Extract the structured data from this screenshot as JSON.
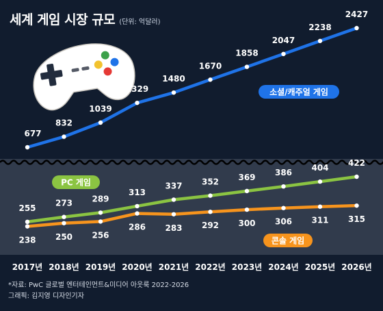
{
  "header": {
    "title": "세계 게임 시장 규모",
    "unit": "(단위: 억달러)"
  },
  "source": {
    "line1": "*자료: PwC 글로벌 엔터테인먼트&미디어 아웃룩 2022-2026",
    "line2": "그래픽: 김지영 디자인기자"
  },
  "colors": {
    "background": "#111c2e",
    "lower_panel": "#313b4c",
    "mobile": "#1f73e8",
    "pc": "#8bc442",
    "console": "#f7941d"
  },
  "chart_data": {
    "type": "line",
    "categories": [
      "2017년",
      "2018년",
      "2019년",
      "2020년",
      "2021년",
      "2022년",
      "2023년",
      "2024년",
      "2025년",
      "2026년"
    ],
    "series": [
      {
        "name": "소셜/캐주얼 게임",
        "color": "#1f73e8",
        "values": [
          677,
          832,
          1039,
          1329,
          1480,
          1670,
          1858,
          2047,
          2238,
          2427
        ]
      },
      {
        "name": "PC 게임",
        "color": "#8bc442",
        "values": [
          255,
          273,
          289,
          313,
          337,
          352,
          369,
          386,
          404,
          422
        ]
      },
      {
        "name": "콘솔 게임",
        "color": "#f7941d",
        "values": [
          238,
          250,
          256,
          286,
          283,
          292,
          300,
          306,
          311,
          315
        ]
      }
    ],
    "axis_break": true,
    "grid": false,
    "legend": "inline labels"
  }
}
